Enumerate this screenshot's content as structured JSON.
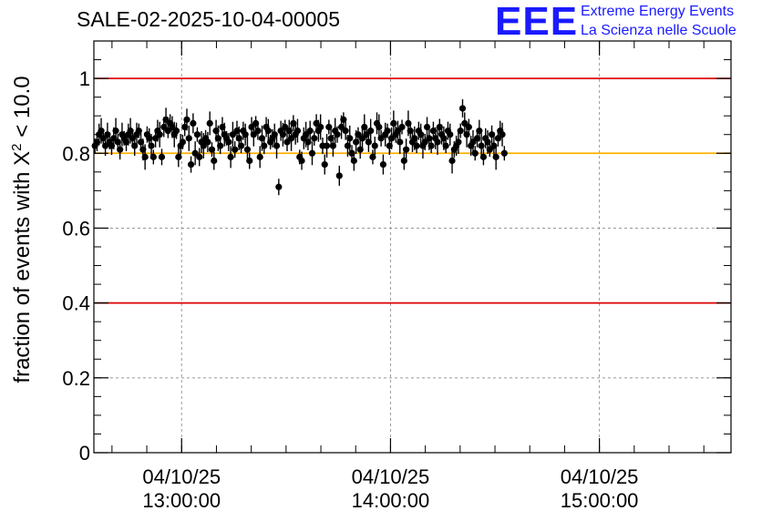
{
  "chart_data": {
    "type": "scatter",
    "title": "SALE-02-2025-10-04-00005",
    "ylabel_main": "fraction of events with X",
    "ylabel_sup": "2",
    "ylabel_tail": " < 10.0",
    "ylim": [
      0,
      1.1
    ],
    "yticks": [
      "0",
      "0.2",
      "0.4",
      "0.6",
      "0.8",
      "1"
    ],
    "ytick_values": [
      0,
      0.2,
      0.4,
      0.6,
      0.8,
      1.0
    ],
    "xlim_hours": [
      12.58,
      15.63
    ],
    "xticks": [
      {
        "date": "04/10/25",
        "time": "13:00:00",
        "hour": 13.0
      },
      {
        "date": "04/10/25",
        "time": "14:00:00",
        "hour": 14.0
      },
      {
        "date": "04/10/25",
        "time": "15:00:00",
        "hour": 15.0
      }
    ],
    "reference_lines": [
      {
        "y": 1.0,
        "color": "#dd0000"
      },
      {
        "y": 0.4,
        "color": "#dd0000"
      },
      {
        "y": 0.8,
        "color": "#ffb000"
      }
    ],
    "grid": true,
    "series": [
      {
        "name": "fraction",
        "x_start_hour": 12.585,
        "x_step_hour": 0.01,
        "values": [
          0.82,
          0.83,
          0.85,
          0.86,
          0.84,
          0.82,
          0.85,
          0.83,
          0.82,
          0.84,
          0.86,
          0.83,
          0.81,
          0.85,
          0.84,
          0.83,
          0.85,
          0.86,
          0.84,
          0.82,
          0.85,
          0.86,
          0.83,
          0.81,
          0.79,
          0.85,
          0.84,
          0.82,
          0.79,
          0.84,
          0.86,
          0.85,
          0.79,
          0.87,
          0.89,
          0.86,
          0.88,
          0.87,
          0.85,
          0.86,
          0.79,
          0.82,
          0.83,
          0.87,
          0.89,
          0.84,
          0.77,
          0.88,
          0.8,
          0.85,
          0.79,
          0.83,
          0.82,
          0.84,
          0.83,
          0.88,
          0.81,
          0.78,
          0.86,
          0.84,
          0.82,
          0.87,
          0.85,
          0.84,
          0.83,
          0.79,
          0.85,
          0.81,
          0.86,
          0.84,
          0.82,
          0.86,
          0.85,
          0.81,
          0.78,
          0.87,
          0.85,
          0.88,
          0.86,
          0.79,
          0.84,
          0.82,
          0.87,
          0.86,
          0.83,
          0.84,
          0.85,
          0.82,
          0.71,
          0.86,
          0.85,
          0.87,
          0.83,
          0.86,
          0.84,
          0.88,
          0.85,
          0.86,
          0.79,
          0.78,
          0.84,
          0.85,
          0.83,
          0.86,
          0.8,
          0.84,
          0.88,
          0.86,
          0.87,
          0.82,
          0.77,
          0.82,
          0.87,
          0.84,
          0.82,
          0.86,
          0.85,
          0.74,
          0.87,
          0.89,
          0.86,
          0.82,
          0.84,
          0.8,
          0.78,
          0.83,
          0.85,
          0.81,
          0.84,
          0.87,
          0.85,
          0.83,
          0.86,
          0.79,
          0.82,
          0.88,
          0.87,
          0.84,
          0.77,
          0.85,
          0.86,
          0.82,
          0.84,
          0.88,
          0.85,
          0.86,
          0.83,
          0.87,
          0.78,
          0.81,
          0.88,
          0.86,
          0.83,
          0.84,
          0.82,
          0.86,
          0.85,
          0.82,
          0.83,
          0.87,
          0.84,
          0.82,
          0.86,
          0.84,
          0.83,
          0.87,
          0.85,
          0.84,
          0.82,
          0.86,
          0.85,
          0.78,
          0.81,
          0.82,
          0.83,
          0.86,
          0.92,
          0.88,
          0.85,
          0.87,
          0.82,
          0.83,
          0.8,
          0.84,
          0.86,
          0.82,
          0.79,
          0.84,
          0.83,
          0.81,
          0.85,
          0.82,
          0.79,
          0.84,
          0.86,
          0.85,
          0.8
        ]
      }
    ]
  },
  "logo": {
    "mark": "EEE",
    "line1": "Extreme Energy Events",
    "line2": "La Scienza nelle Scuole"
  },
  "colors": {
    "limit_line": "#dd0000",
    "reference_line": "#ffb000",
    "marker": "#000000",
    "logo": "#1a1aff"
  }
}
